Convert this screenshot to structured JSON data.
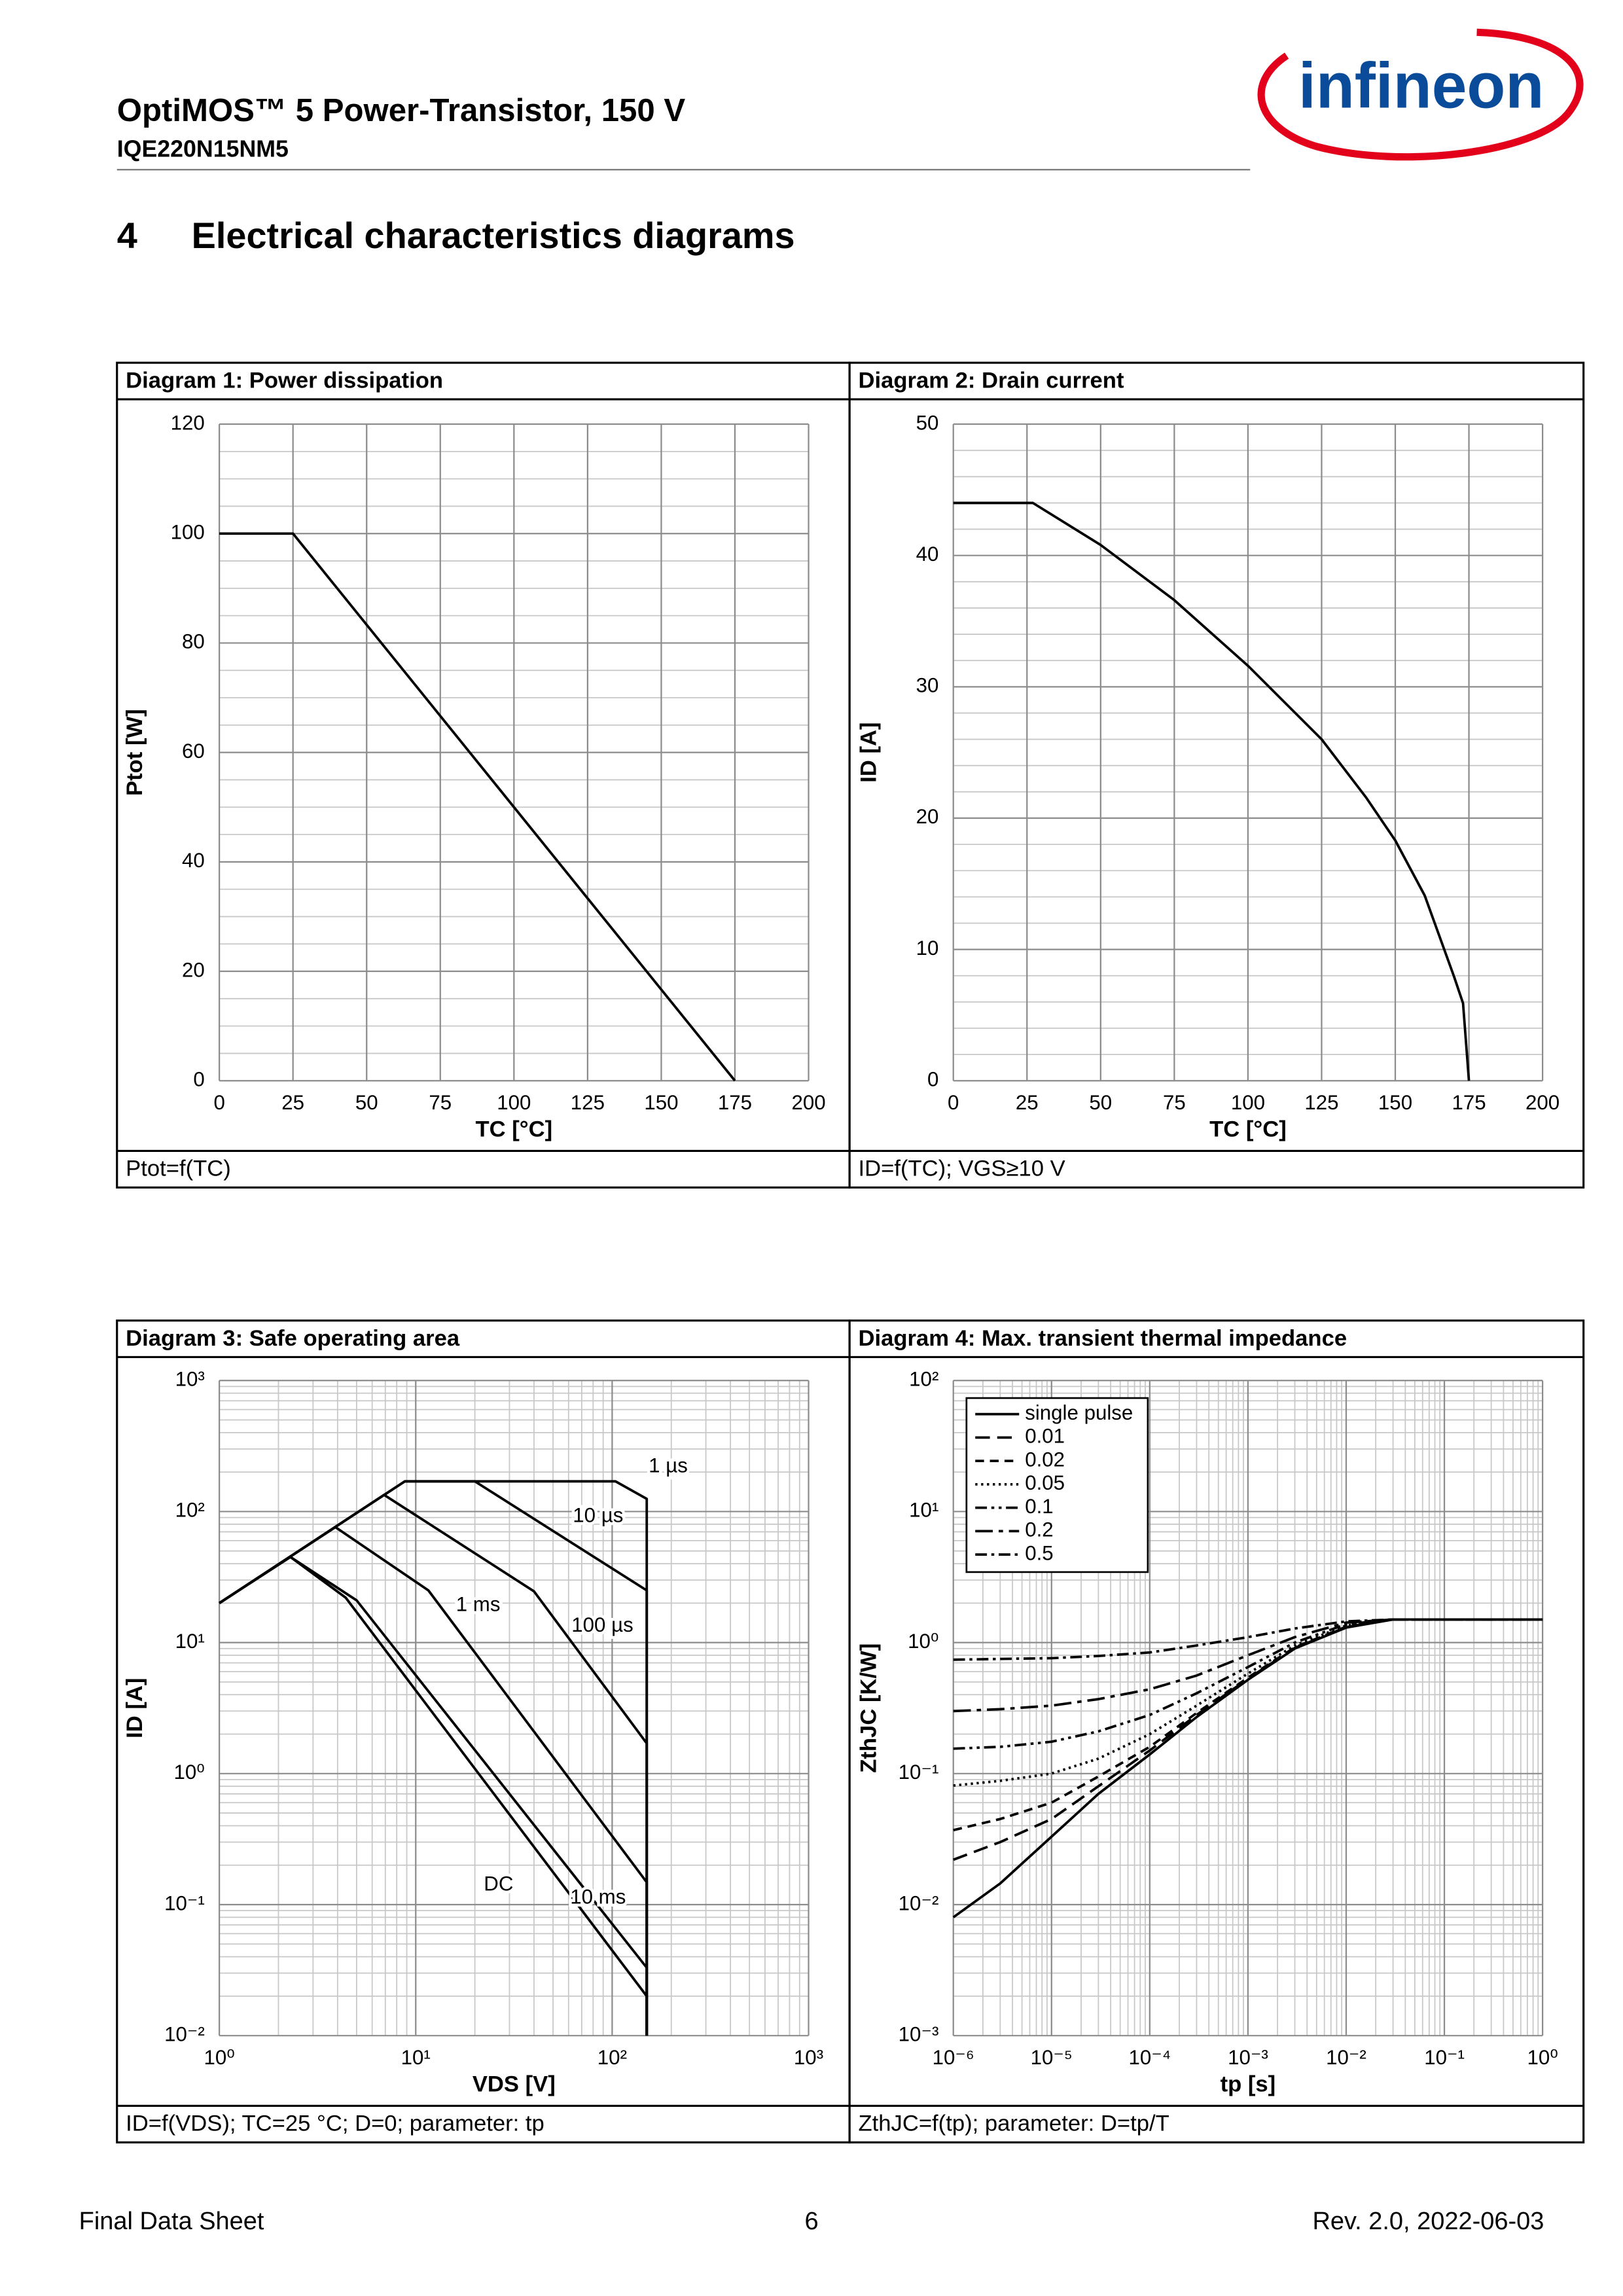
{
  "header": {
    "title": "OptiMOS™ 5 Power-Transistor, 150 V",
    "part": "IQE220N15NM5",
    "logo": "infineon"
  },
  "section": {
    "number": "4",
    "title": "Electrical characteristics diagrams"
  },
  "chart_data": [
    {
      "type": "line",
      "title": "Diagram 1: Power dissipation",
      "caption": "Ptot=f(TC)",
      "xlabel": "TC [°C]",
      "ylabel": "Ptot [W]",
      "x": [
        0,
        25,
        175
      ],
      "series": [
        {
          "color": "#000000",
          "dash": "solid",
          "values": [
            100,
            100,
            0
          ]
        }
      ],
      "xlim": [
        0,
        200
      ],
      "xticks": [
        0,
        25,
        50,
        75,
        100,
        125,
        150,
        175,
        200
      ],
      "ylim": [
        0,
        120
      ],
      "yticks": [
        0,
        20,
        40,
        60,
        80,
        100,
        120
      ],
      "grid": true,
      "y_minor_divisions": 4
    },
    {
      "type": "line",
      "title": "Diagram 2: Drain current",
      "caption": "ID=f(TC); VGS≥10 V",
      "xlabel": "TC [°C]",
      "ylabel": "ID [A]",
      "x": [
        0,
        27,
        50,
        75,
        100,
        125,
        140,
        150,
        160,
        170,
        173,
        175
      ],
      "series": [
        {
          "color": "#000000",
          "dash": "solid",
          "values": [
            44,
            44,
            40.8,
            36.6,
            31.6,
            26,
            21.6,
            18.3,
            14.1,
            7.9,
            5.9,
            0
          ]
        }
      ],
      "xlim": [
        0,
        200
      ],
      "xticks": [
        0,
        25,
        50,
        75,
        100,
        125,
        150,
        175,
        200
      ],
      "ylim": [
        0,
        50
      ],
      "yticks": [
        0,
        10,
        20,
        30,
        40,
        50
      ],
      "grid": true,
      "y_minor_divisions": 5
    },
    {
      "type": "line",
      "title": "Diagram 3: Safe operating area",
      "caption": "ID=f(VDS); TC=25 °C; D=0; parameter: tp",
      "xlabel": "VDS [V]",
      "ylabel": "ID [A]",
      "xscale": "log",
      "yscale": "log",
      "series": [
        {
          "name": "1 µs",
          "color": "#000000",
          "dash": "solid",
          "x": [
            1,
            8.8,
            104,
            150,
            150
          ],
          "values": [
            20,
            170,
            170,
            125,
            0.01
          ]
        },
        {
          "name": "10 µs",
          "color": "#000000",
          "dash": "solid",
          "x": [
            1,
            8.8,
            20,
            150,
            150
          ],
          "values": [
            20,
            170,
            170,
            25,
            0.01
          ]
        },
        {
          "name": "100 µs",
          "color": "#000000",
          "dash": "solid",
          "x": [
            1,
            6.9,
            40,
            150,
            150
          ],
          "values": [
            20,
            134,
            24.6,
            1.7,
            0.01
          ]
        },
        {
          "name": "1 ms",
          "color": "#000000",
          "dash": "solid",
          "x": [
            1,
            3.9,
            11.6,
            150,
            150
          ],
          "values": [
            20,
            76,
            25,
            0.148,
            0.01
          ]
        },
        {
          "name": "10 ms",
          "color": "#000000",
          "dash": "solid",
          "x": [
            1,
            2.3,
            5,
            150,
            150
          ],
          "values": [
            20,
            45,
            21,
            0.033,
            0.01
          ]
        },
        {
          "name": "DC",
          "color": "#000000",
          "dash": "solid",
          "x": [
            1,
            2.3,
            4.4,
            150,
            150
          ],
          "values": [
            20,
            45,
            22,
            0.02,
            0.01
          ]
        }
      ],
      "xlim": [
        1,
        1000
      ],
      "xticks": [
        {
          "value": 1,
          "label": "10⁰"
        },
        {
          "value": 10,
          "label": "10¹"
        },
        {
          "value": 100,
          "label": "10²"
        },
        {
          "value": 1000,
          "label": "10³"
        }
      ],
      "ylim": [
        0.01,
        1000
      ],
      "yticks": [
        {
          "value": 0.01,
          "label": "10⁻²"
        },
        {
          "value": 0.1,
          "label": "10⁻¹"
        },
        {
          "value": 1,
          "label": "10⁰"
        },
        {
          "value": 10,
          "label": "10¹"
        },
        {
          "value": 100,
          "label": "10²"
        },
        {
          "value": 1000,
          "label": "10³"
        }
      ],
      "grid": true,
      "minor_grid": true
    },
    {
      "type": "line",
      "title": "Diagram 4: Max. transient thermal impedance",
      "caption": "ZthJC=f(tp); parameter: D=tp/T",
      "xlabel": "tp [s]",
      "ylabel": "ZthJC [K/W]",
      "xscale": "log",
      "yscale": "log",
      "x": [
        1e-06,
        3e-06,
        1e-05,
        3e-05,
        0.0001,
        0.0003,
        0.001,
        0.003,
        0.01,
        0.03,
        0.1,
        1
      ],
      "series": [
        {
          "name": "single pulse",
          "color": "#000000",
          "dash": "solid",
          "values": [
            0.008,
            0.0145,
            0.033,
            0.07,
            0.14,
            0.27,
            0.52,
            0.9,
            1.3,
            1.5,
            1.5,
            1.5
          ]
        },
        {
          "name": "0.01",
          "color": "#000000",
          "dash": "long-dash",
          "values": [
            0.022,
            0.03,
            0.045,
            0.08,
            0.15,
            0.28,
            0.53,
            0.91,
            1.31,
            1.5,
            1.5,
            1.5
          ]
        },
        {
          "name": "0.02",
          "color": "#000000",
          "dash": "dash",
          "values": [
            0.037,
            0.045,
            0.06,
            0.095,
            0.16,
            0.29,
            0.54,
            0.92,
            1.32,
            1.5,
            1.5,
            1.5
          ]
        },
        {
          "name": "0.05",
          "color": "#000000",
          "dash": "dot",
          "values": [
            0.081,
            0.088,
            0.1,
            0.13,
            0.2,
            0.33,
            0.58,
            0.95,
            1.35,
            1.5,
            1.5,
            1.5
          ]
        },
        {
          "name": "0.1",
          "color": "#000000",
          "dash": "dash-dot-dot",
          "values": [
            0.155,
            0.16,
            0.175,
            0.21,
            0.28,
            0.41,
            0.65,
            1.0,
            1.38,
            1.5,
            1.5,
            1.5
          ]
        },
        {
          "name": "0.2",
          "color": "#000000",
          "dash": "long-dash-dot",
          "values": [
            0.3,
            0.31,
            0.33,
            0.37,
            0.44,
            0.56,
            0.8,
            1.1,
            1.42,
            1.5,
            1.5,
            1.5
          ]
        },
        {
          "name": "0.5",
          "color": "#000000",
          "dash": "dash-dot",
          "values": [
            0.74,
            0.75,
            0.76,
            0.79,
            0.84,
            0.95,
            1.1,
            1.28,
            1.45,
            1.5,
            1.5,
            1.5
          ]
        }
      ],
      "xlim": [
        1e-06,
        1
      ],
      "xticks": [
        {
          "value": 1e-06,
          "label": "10⁻⁶"
        },
        {
          "value": 1e-05,
          "label": "10⁻⁵"
        },
        {
          "value": 0.0001,
          "label": "10⁻⁴"
        },
        {
          "value": 0.001,
          "label": "10⁻³"
        },
        {
          "value": 0.01,
          "label": "10⁻²"
        },
        {
          "value": 0.1,
          "label": "10⁻¹"
        },
        {
          "value": 1,
          "label": "10⁰"
        }
      ],
      "ylim": [
        0.001,
        100
      ],
      "yticks": [
        {
          "value": 0.001,
          "label": "10⁻³"
        },
        {
          "value": 0.01,
          "label": "10⁻²"
        },
        {
          "value": 0.1,
          "label": "10⁻¹"
        },
        {
          "value": 1,
          "label": "10⁰"
        },
        {
          "value": 10,
          "label": "10¹"
        },
        {
          "value": 100,
          "label": "10²"
        }
      ],
      "grid": true,
      "minor_grid": true,
      "legend": "upper left"
    }
  ],
  "footer": {
    "left": "Final Data Sheet",
    "page": "6",
    "right": "Rev. 2.0,  2022-06-03"
  }
}
